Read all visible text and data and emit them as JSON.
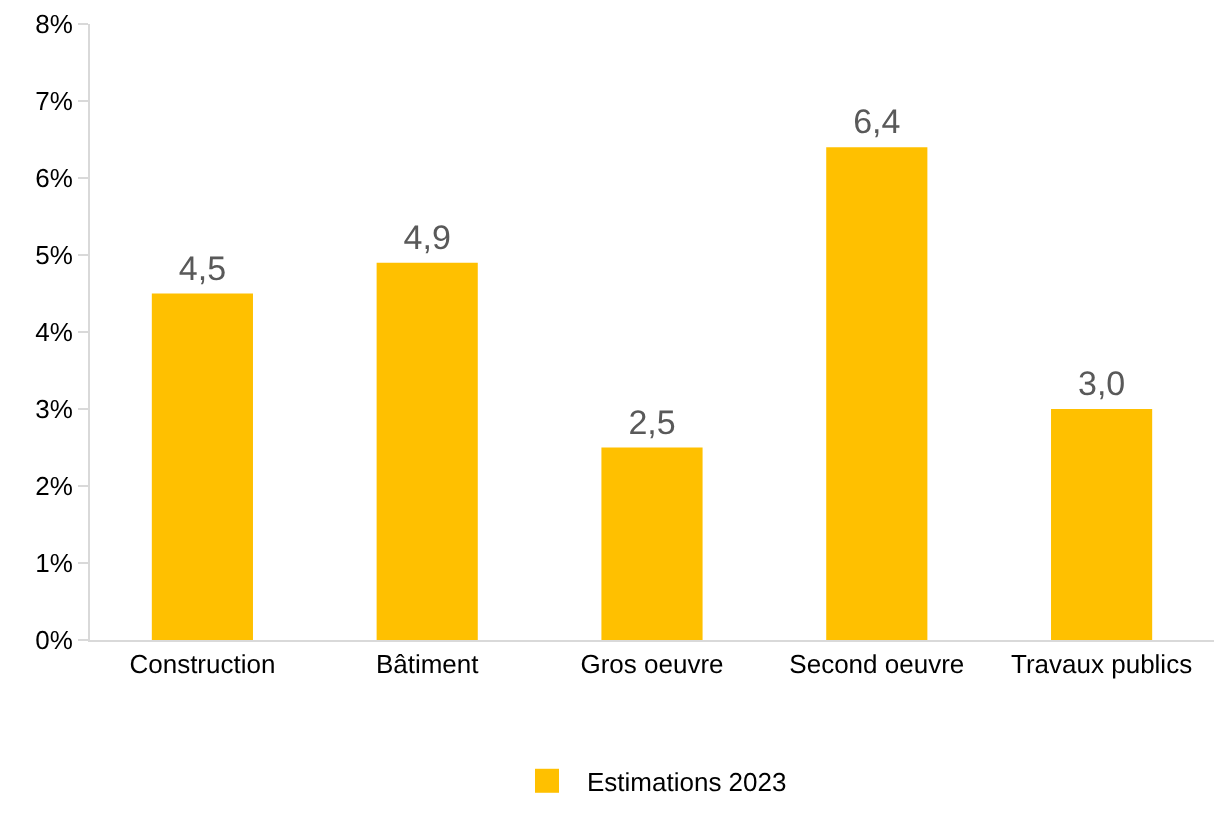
{
  "chart_data": {
    "type": "bar",
    "categories": [
      "Construction",
      "Bâtiment",
      "Gros oeuvre",
      "Second oeuvre",
      "Travaux publics"
    ],
    "series": [
      {
        "name": "Estimations 2023",
        "color": "#ffc000",
        "values": [
          4.5,
          4.9,
          2.5,
          6.4,
          3.0
        ],
        "value_labels": [
          "4,5",
          "4,9",
          "2,5",
          "6,4",
          "3,0"
        ]
      }
    ],
    "ylim": [
      0,
      8
    ],
    "yticks": [
      {
        "value": 0,
        "label": "0%"
      },
      {
        "value": 1,
        "label": "1%"
      },
      {
        "value": 2,
        "label": "2%"
      },
      {
        "value": 3,
        "label": "3%"
      },
      {
        "value": 4,
        "label": "4%"
      },
      {
        "value": 5,
        "label": "5%"
      },
      {
        "value": 6,
        "label": "6%"
      },
      {
        "value": 7,
        "label": "7%"
      },
      {
        "value": 8,
        "label": "8%"
      }
    ],
    "grid": false,
    "legend": "bottom"
  }
}
